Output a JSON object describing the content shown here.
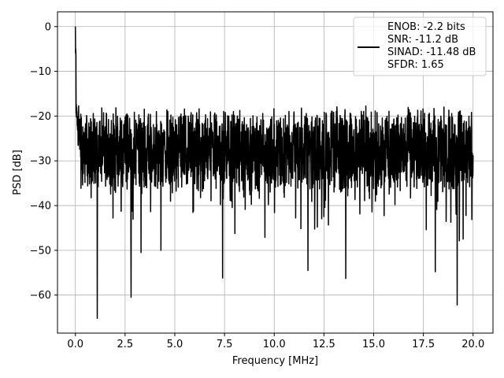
{
  "chart_data": {
    "type": "line",
    "title": "",
    "xlabel": "Frequency [MHz]",
    "ylabel": "PSD [dB]",
    "xlim": [
      -0.9,
      21.0
    ],
    "ylim": [
      -68.5,
      3.3
    ],
    "xticks": [
      0.0,
      2.5,
      5.0,
      7.5,
      10.0,
      12.5,
      15.0,
      17.5,
      20.0
    ],
    "xtick_labels": [
      "0.0",
      "2.5",
      "5.0",
      "7.5",
      "10.0",
      "12.5",
      "15.0",
      "17.5",
      "20.0"
    ],
    "yticks": [
      0,
      -10,
      -20,
      -30,
      -40,
      -50,
      -60
    ],
    "ytick_labels": [
      "0",
      "−10",
      "−20",
      "−30",
      "−40",
      "−50",
      "−60"
    ],
    "grid": true,
    "legend_position": "top-right",
    "line_color": "#000000",
    "legend": {
      "lines": [
        "ENOB: -2.2 bits",
        "SNR: -11.2 dB",
        "SINAD: -11.48 dB",
        "SFDR: 1.65"
      ]
    },
    "series": [
      {
        "x_start": 0.0,
        "x_end": 20.0,
        "peak": {
          "x": 0.0,
          "y": 0
        },
        "typical_floor": [
          -35,
          -20
        ],
        "notable_dips": [
          {
            "x": 1.1,
            "y": -65.2
          },
          {
            "x": 2.8,
            "y": -60.5
          },
          {
            "x": 3.3,
            "y": -50.5
          },
          {
            "x": 4.3,
            "y": -50.0
          },
          {
            "x": 7.4,
            "y": -56.2
          },
          {
            "x": 11.7,
            "y": -54.5
          },
          {
            "x": 13.6,
            "y": -56.3
          },
          {
            "x": 18.1,
            "y": -54.8
          },
          {
            "x": 19.2,
            "y": -62.2
          },
          {
            "x": 19.5,
            "y": -47.5
          }
        ]
      }
    ]
  }
}
